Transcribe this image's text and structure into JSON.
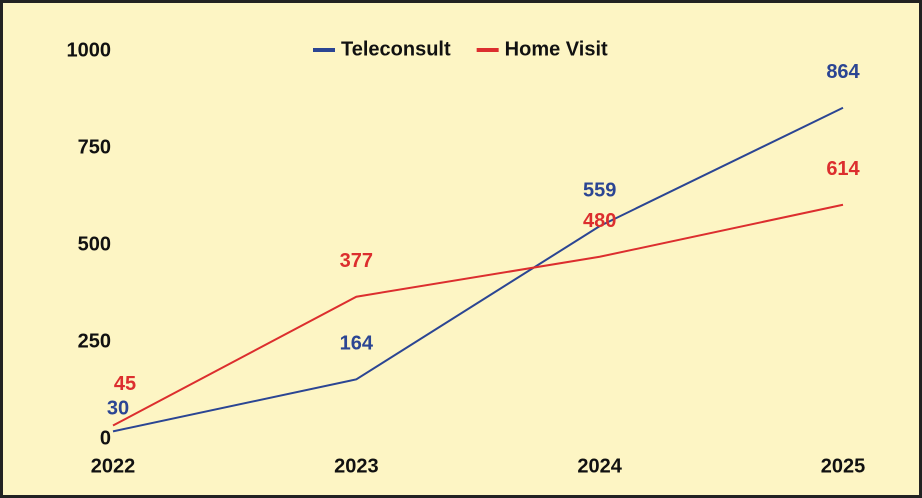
{
  "chart_data": {
    "type": "line",
    "categories": [
      "2022",
      "2023",
      "2024",
      "2025"
    ],
    "series": [
      {
        "name": "Teleconsult",
        "color": "#2b4593",
        "values": [
          30,
          164,
          559,
          864
        ]
      },
      {
        "name": "Home Visit",
        "color": "#dc2e2e",
        "values": [
          45,
          377,
          480,
          614
        ]
      }
    ],
    "ylim": [
      0,
      1000
    ],
    "yticks": [
      0,
      250,
      500,
      750,
      1000
    ],
    "grid": false,
    "legend": "top"
  }
}
